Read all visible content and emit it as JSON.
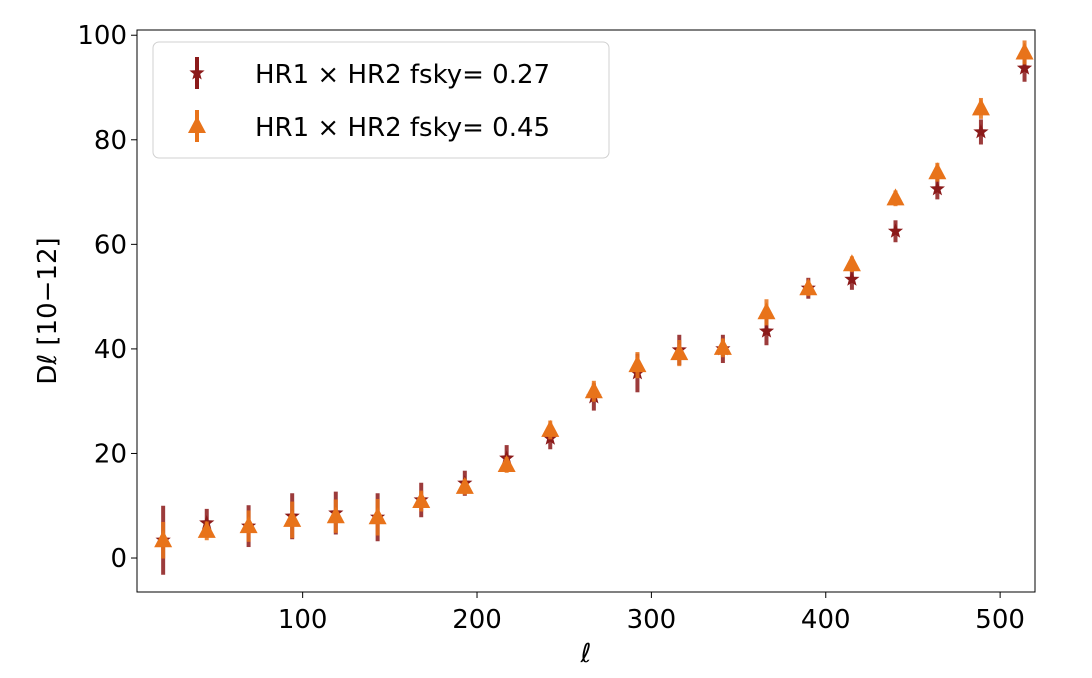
{
  "chart_data": {
    "type": "errorbar",
    "xlabel": "ℓ",
    "ylabel": "Dℓ [10−12]",
    "xlim": [
      5,
      520
    ],
    "ylim": [
      -6.5,
      101
    ],
    "xticks": [
      100,
      200,
      300,
      400,
      500
    ],
    "yticks": [
      0,
      20,
      40,
      60,
      80,
      100
    ],
    "legend": "upper left",
    "x": [
      20,
      45,
      69,
      94,
      119,
      143,
      168,
      193,
      217,
      242,
      267,
      292,
      316,
      341,
      366,
      390,
      415,
      440,
      464,
      489,
      514
    ],
    "series": [
      {
        "name": "HR1 × HR2 fsky= 0.27",
        "color": "#8b1a1a",
        "marker": "star",
        "values": [
          3.4,
          6.7,
          6.1,
          8,
          8.6,
          7.8,
          11.1,
          14.3,
          19.1,
          22.9,
          30.8,
          35.4,
          39.8,
          40,
          43.4,
          51.6,
          53.3,
          62.5,
          70.6,
          81.5,
          93.7
        ],
        "errors": [
          6.6,
          2.7,
          4,
          4.4,
          4.1,
          4.6,
          3.3,
          2.4,
          2.5,
          2.1,
          2.6,
          3.7,
          2.9,
          2.7,
          2.7,
          2,
          2,
          2.1,
          2,
          2.4,
          2.6
        ]
      },
      {
        "name": "HR1 × HR2 fsky= 0.45",
        "color": "#e8731a",
        "marker": "triangle",
        "values": [
          3.4,
          5.2,
          6.1,
          7.3,
          8,
          7.8,
          10.9,
          13.6,
          17.8,
          24.5,
          31.9,
          36.9,
          39.2,
          40.2,
          47,
          51.6,
          56.2,
          68.8,
          73.8,
          86,
          96.7
        ],
        "errors": [
          3.5,
          1.8,
          3,
          3.5,
          3.2,
          3.5,
          2,
          1.5,
          1.5,
          1.8,
          2,
          2.5,
          2.5,
          1.8,
          2.5,
          1.5,
          1.5,
          1.5,
          1.8,
          2,
          2.3
        ]
      }
    ]
  }
}
